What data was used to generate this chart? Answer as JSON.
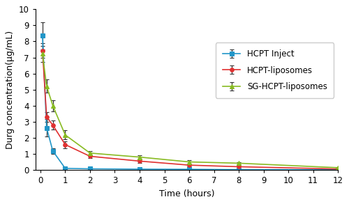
{
  "title": "",
  "xlabel": "Time (hours)",
  "ylabel": "Durg concentration(μg/mL)",
  "xlim": [
    -0.2,
    12
  ],
  "ylim": [
    0,
    10
  ],
  "xticks": [
    0,
    1,
    2,
    3,
    4,
    5,
    6,
    7,
    8,
    9,
    10,
    11,
    12
  ],
  "yticks": [
    0,
    1,
    2,
    3,
    4,
    5,
    6,
    7,
    8,
    9,
    10
  ],
  "series": [
    {
      "label": "HCPT Inject",
      "color": "#2196c8",
      "marker": "s",
      "markersize": 4,
      "x": [
        0.083,
        0.25,
        0.5,
        1.0,
        2.0,
        4.0,
        6.0,
        8.0,
        12.0
      ],
      "y": [
        8.35,
        2.62,
        1.18,
        0.1,
        0.07,
        0.05,
        0.04,
        0.02,
        0.01
      ],
      "yerr": [
        0.85,
        0.55,
        0.18,
        0.04,
        0.03,
        0.02,
        0.02,
        0.01,
        0.01
      ]
    },
    {
      "label": "HCPT-liposomes",
      "color": "#e03030",
      "marker": "o",
      "markersize": 4,
      "x": [
        0.083,
        0.25,
        0.5,
        1.0,
        2.0,
        4.0,
        6.0,
        8.0,
        12.0
      ],
      "y": [
        7.42,
        3.3,
        2.79,
        1.58,
        0.85,
        0.55,
        0.3,
        0.2,
        0.06
      ],
      "yerr": [
        0.45,
        0.32,
        0.28,
        0.22,
        0.12,
        0.1,
        0.06,
        0.05,
        0.02
      ]
    },
    {
      "label": "SG-HCPT-liposomes",
      "color": "#88bb22",
      "marker": "^",
      "markersize": 4,
      "x": [
        0.083,
        0.25,
        0.5,
        1.0,
        2.0,
        4.0,
        6.0,
        8.0,
        12.0
      ],
      "y": [
        7.22,
        5.22,
        4.0,
        2.18,
        1.05,
        0.8,
        0.5,
        0.42,
        0.14
      ],
      "yerr": [
        0.5,
        0.42,
        0.35,
        0.28,
        0.14,
        0.12,
        0.09,
        0.08,
        0.04
      ]
    }
  ],
  "ecolor": "#333333",
  "figsize": [
    5.0,
    2.93
  ],
  "dpi": 100,
  "background_color": "#ffffff",
  "legend_fontsize": 8.5,
  "axis_fontsize": 9,
  "tick_fontsize": 8.5
}
